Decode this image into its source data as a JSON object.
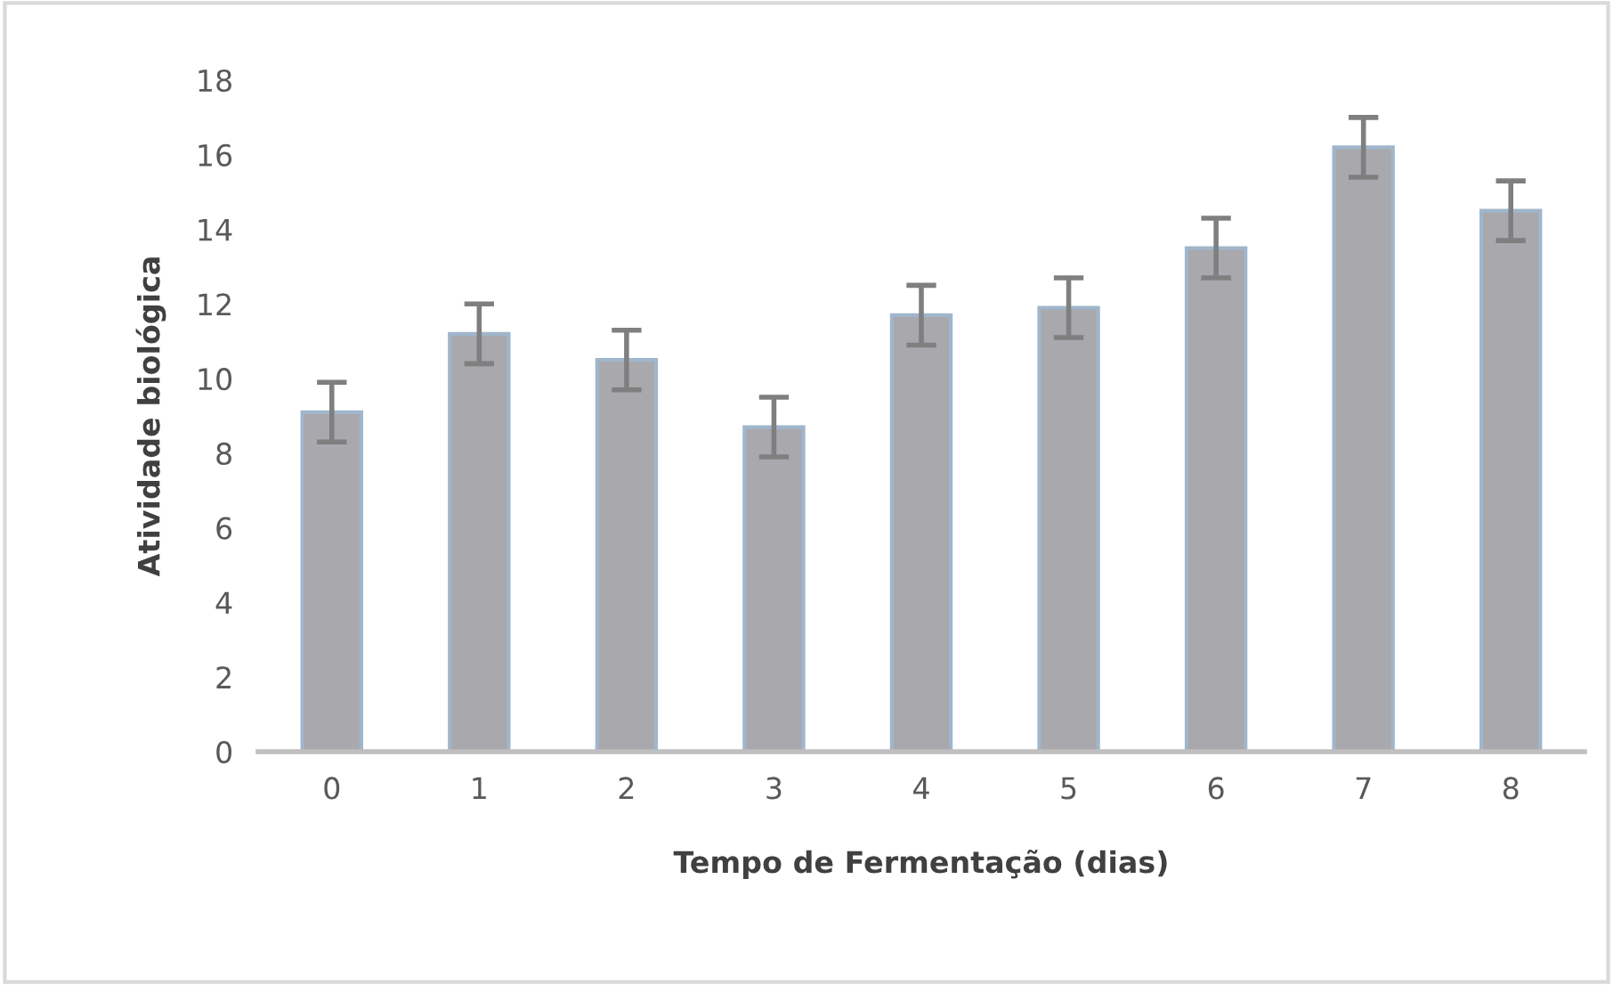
{
  "chart_data": {
    "type": "bar",
    "xlabel": "Tempo de Fermentação (dias)",
    "ylabel": "Atividade biológica",
    "categories": [
      "0",
      "1",
      "2",
      "3",
      "4",
      "5",
      "6",
      "7",
      "8"
    ],
    "values": [
      9.1,
      11.2,
      10.5,
      8.7,
      11.7,
      11.9,
      13.5,
      16.2,
      14.5
    ],
    "errors": [
      0.8,
      0.8,
      0.8,
      0.8,
      0.8,
      0.8,
      0.8,
      0.8,
      0.8
    ],
    "color": "#a8a8ad",
    "ylim": [
      0,
      18
    ],
    "yticks": [
      0,
      2,
      4,
      6,
      8,
      10,
      12,
      14,
      16,
      18
    ],
    "grid": false
  }
}
